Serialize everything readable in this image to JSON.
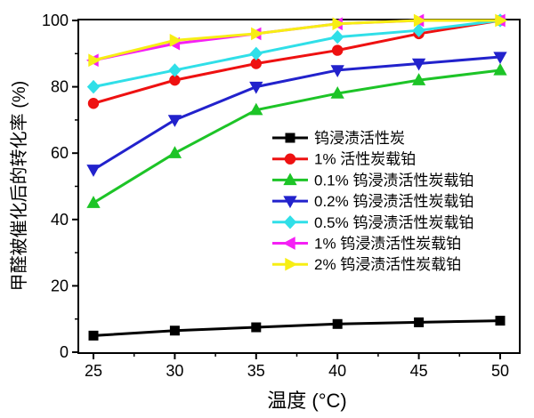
{
  "chart_data": {
    "type": "line",
    "title": "",
    "xlabel": "温度 (°C)",
    "ylabel": "甲醛被催化后的转化率 (%)",
    "x": [
      25,
      30,
      35,
      40,
      45,
      50
    ],
    "xlim": [
      24,
      51.2
    ],
    "ylim": [
      0,
      100
    ],
    "x_major_ticks": [
      25,
      30,
      35,
      40,
      45,
      50
    ],
    "x_minor_ticks": [
      27.5,
      32.5,
      37.5,
      42.5,
      47.5
    ],
    "y_major_ticks": [
      0,
      20,
      40,
      60,
      80,
      100
    ],
    "y_minor_ticks": [
      10,
      30,
      50,
      70,
      90
    ],
    "grid": false,
    "legend_position": "inside-middle-right",
    "frame_color": "#000000",
    "series": [
      {
        "name": "钨浸渍活性炭",
        "color": "#000000",
        "marker": "square",
        "values": [
          5,
          6.5,
          7.5,
          8.5,
          9,
          9.5
        ]
      },
      {
        "name": "1% 活性炭载铂",
        "color": "#ee1111",
        "marker": "circle",
        "values": [
          75,
          82,
          87,
          91,
          96,
          100
        ]
      },
      {
        "name": "0.1% 钨浸渍活性炭载铂",
        "color": "#1dc427",
        "marker": "triangle-up",
        "values": [
          45,
          60,
          73,
          78,
          82,
          85
        ]
      },
      {
        "name": "0.2% 钨浸渍活性炭载铂",
        "color": "#2222cc",
        "marker": "triangle-down",
        "values": [
          55,
          70,
          80,
          85,
          87,
          89
        ]
      },
      {
        "name": "0.5% 钨浸渍活性炭载铂",
        "color": "#30dfe8",
        "marker": "diamond",
        "values": [
          80,
          85,
          90,
          95,
          97,
          100
        ]
      },
      {
        "name": "1% 钨浸渍活性炭载铂",
        "color": "#f520f5",
        "marker": "triangle-left",
        "values": [
          88,
          93,
          96,
          99,
          100,
          100
        ]
      },
      {
        "name": "2% 钨浸渍活性炭载铂",
        "color": "#f7ee14",
        "marker": "triangle-right",
        "values": [
          88,
          94,
          96,
          99,
          100,
          100
        ]
      }
    ]
  }
}
